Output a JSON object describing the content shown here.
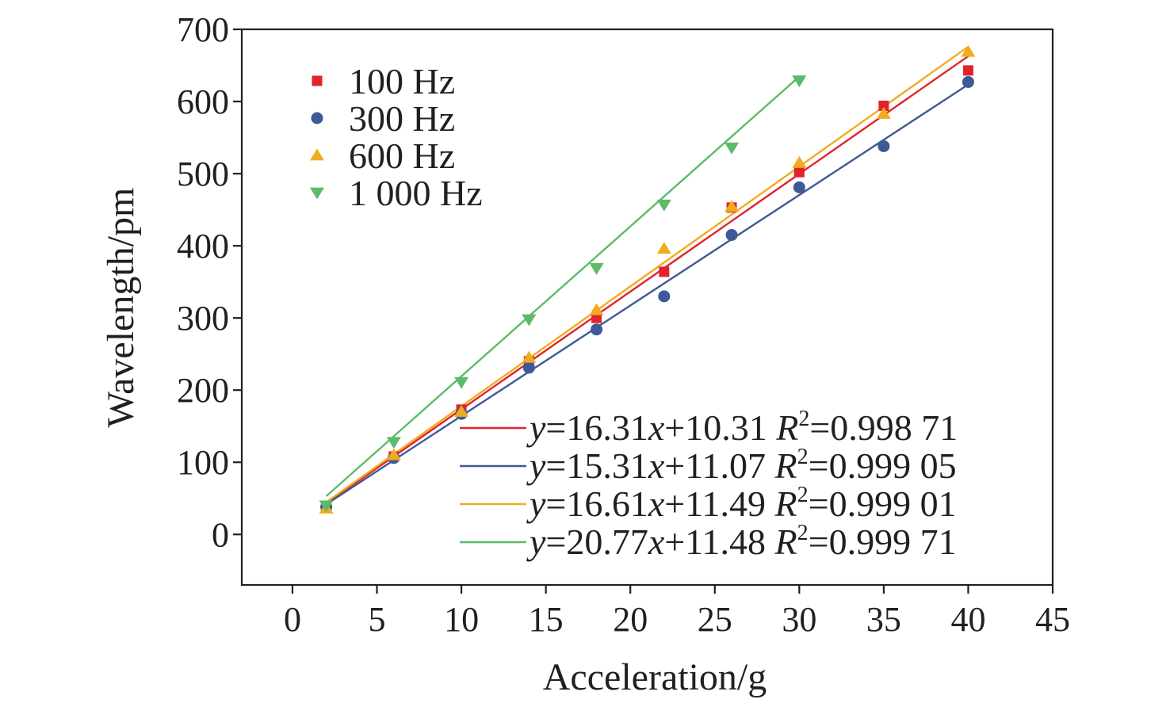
{
  "chart_data": {
    "type": "scatter",
    "xlabel": "Acceleration/g",
    "ylabel": "Wavelength/pm",
    "xlim": [
      -3,
      45
    ],
    "ylim": [
      -70,
      700
    ],
    "xticks": [
      0,
      5,
      10,
      15,
      20,
      25,
      30,
      35,
      40,
      45
    ],
    "yticks": [
      0,
      100,
      200,
      300,
      400,
      500,
      600,
      700
    ],
    "grid": false,
    "legend_position": "top-left",
    "series": [
      {
        "name": "100 Hz",
        "marker": "square",
        "color": "#e0242b",
        "x": [
          2,
          6,
          10,
          14,
          18,
          22,
          26,
          30,
          35,
          40
        ],
        "y": [
          38,
          108,
          173,
          240,
          300,
          364,
          453,
          502,
          594,
          643
        ],
        "fit": {
          "slope": 16.31,
          "intercept": 10.31,
          "x_range": [
            2,
            40
          ],
          "line_color": "#e0242b",
          "equation": "y=16.31x+10.31",
          "r2_label": "R2=0.998 71",
          "r_part": "R",
          "exp_part": "2",
          "value_part": "=0.998 71"
        }
      },
      {
        "name": "300 Hz",
        "marker": "circle",
        "color": "#3e5a96",
        "x": [
          2,
          6,
          10,
          14,
          18,
          22,
          26,
          30,
          35,
          40
        ],
        "y": [
          38,
          106,
          167,
          231,
          284,
          330,
          415,
          481,
          538,
          627
        ],
        "fit": {
          "slope": 15.31,
          "intercept": 11.07,
          "x_range": [
            2,
            40
          ],
          "line_color": "#3e5a96",
          "equation": "y=15.31x+11.07",
          "r2_label": "R2=0.999 05",
          "r_part": "R",
          "exp_part": "2",
          "value_part": "=0.999 05"
        }
      },
      {
        "name": "600 Hz",
        "marker": "triangle-up",
        "color": "#f0ac1e",
        "x": [
          2,
          6,
          10,
          14,
          18,
          22,
          26,
          30,
          35,
          40
        ],
        "y": [
          36,
          110,
          170,
          245,
          311,
          396,
          454,
          515,
          583,
          669
        ],
        "fit": {
          "slope": 16.61,
          "intercept": 11.49,
          "x_range": [
            2,
            40
          ],
          "line_color": "#f0ac1e",
          "equation": "y=16.61x+11.49",
          "r2_label": "R2=0.999 01",
          "r_part": "R",
          "exp_part": "2",
          "value_part": "=0.999 01"
        }
      },
      {
        "name": "1 000 Hz",
        "marker": "triangle-down",
        "color": "#5cbb69",
        "x": [
          2,
          6,
          10,
          14,
          18,
          22,
          26,
          30
        ],
        "y": [
          40,
          128,
          211,
          298,
          369,
          457,
          536,
          629
        ],
        "fit": {
          "slope": 20.77,
          "intercept": 11.48,
          "x_range": [
            2,
            30
          ],
          "line_color": "#5cbb69",
          "equation": "y=20.77x+11.48",
          "r2_label": "R2=0.999 71",
          "r_part": "R",
          "exp_part": "2",
          "value_part": "=0.999 71"
        }
      }
    ]
  }
}
